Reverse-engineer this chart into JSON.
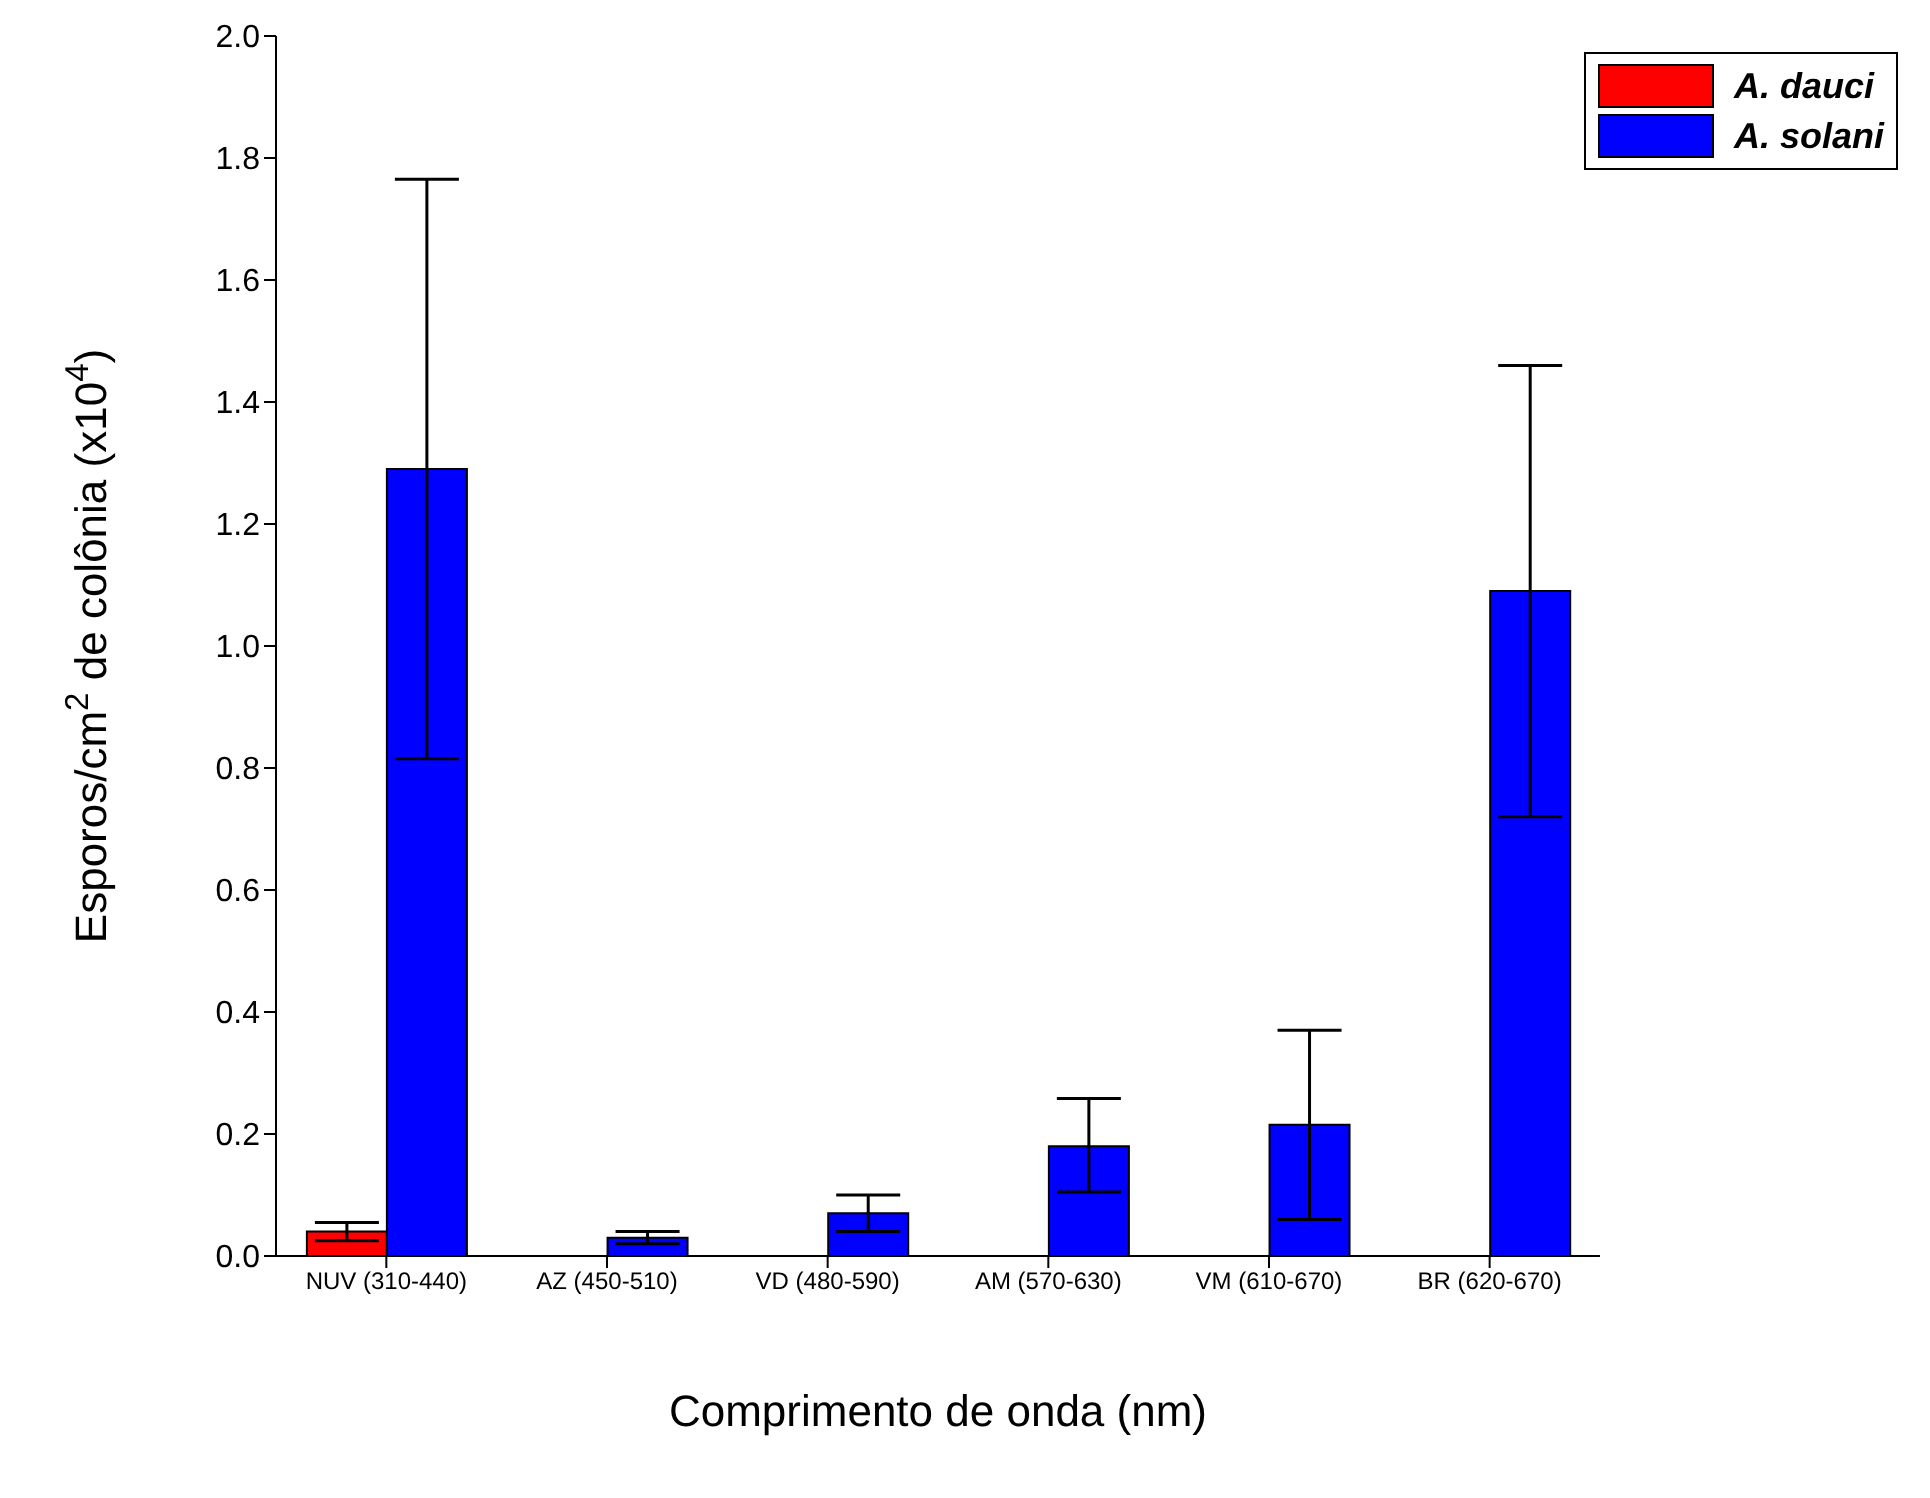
{
  "chart_data": {
    "type": "bar",
    "xlabel": "Comprimento de onda (nm)",
    "ylabel": "Esporos/cm$^{2}$ de colônia (x10$^{4}$)",
    "categories": [
      "NUV (310-440)",
      "AZ (450-510)",
      "VD (480-590)",
      "AM (570-630)",
      "VM (610-670)",
      "BR (620-670)"
    ],
    "series": [
      {
        "name": "A. dauci",
        "color": "#ff0000",
        "values": [
          0.04,
          null,
          null,
          null,
          null,
          null
        ],
        "errors": [
          [
            0.025,
            0.055
          ],
          null,
          null,
          null,
          null,
          null
        ]
      },
      {
        "name": "A. solani",
        "color": "#0000ff",
        "values": [
          1.29,
          0.03,
          0.07,
          0.18,
          0.215,
          1.09
        ],
        "errors": [
          [
            0.815,
            1.765
          ],
          [
            0.02,
            0.04
          ],
          [
            0.04,
            0.1
          ],
          [
            0.105,
            0.258
          ],
          [
            0.06,
            0.37
          ],
          [
            0.72,
            1.46
          ]
        ]
      }
    ],
    "ylim": [
      0,
      2.0
    ],
    "yticks": [
      {
        "value": 0,
        "label": "0.0"
      },
      {
        "value": 0.2,
        "label": "0.2"
      },
      {
        "value": 0.4,
        "label": "0.4"
      },
      {
        "value": 0.6,
        "label": "0.6"
      },
      {
        "value": 0.8,
        "label": "0.8"
      },
      {
        "value": 1.0,
        "label": "1.0"
      },
      {
        "value": 1.2,
        "label": "1.2"
      },
      {
        "value": 1.4,
        "label": "1.4"
      },
      {
        "value": 1.6,
        "label": "1.6"
      },
      {
        "value": 1.8,
        "label": "1.8"
      },
      {
        "value": 2.0,
        "label": "2.0"
      }
    ],
    "legend": "top right",
    "grid": false
  }
}
